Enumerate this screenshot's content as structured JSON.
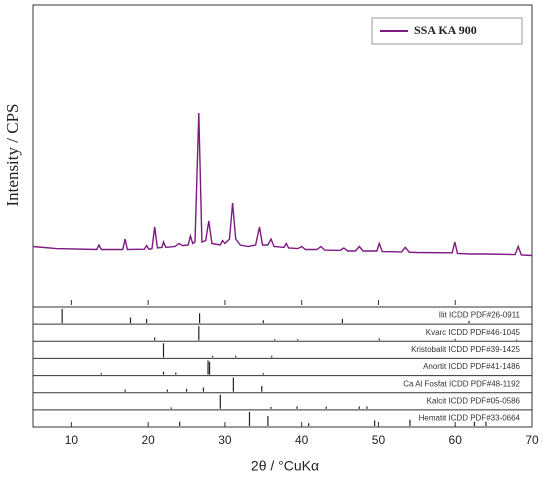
{
  "chart_data": {
    "type": "line",
    "x_label": "2θ / °CuKα",
    "y_label": "Intensity / CPS",
    "xlim": [
      5,
      70
    ],
    "xticks": [
      10,
      20,
      30,
      40,
      50,
      60,
      70
    ],
    "ylim": [
      0,
      100
    ],
    "legend": "upper right",
    "x": [
      5,
      8,
      13.3,
      13.6,
      13.9,
      16.7,
      17.0,
      17.3,
      19.5,
      19.8,
      20.1,
      20.5,
      20.85,
      21.2,
      21.8,
      22,
      22.3,
      23.5,
      24,
      24.5,
      25.2,
      25.5,
      25.8,
      26.1,
      26.6,
      27.0,
      27.5,
      27.9,
      28.3,
      29.4,
      29.7,
      30,
      30.6,
      31,
      31.4,
      32,
      33,
      34,
      34.5,
      34.9,
      35.6,
      36,
      36.4,
      37.7,
      38,
      38.3,
      39.5,
      40,
      40.5,
      42,
      42.5,
      43,
      45,
      45.5,
      46,
      47,
      47.5,
      48,
      49.8,
      50.1,
      50.5,
      53,
      53.5,
      54,
      55,
      59.6,
      59.95,
      60.3,
      62,
      64,
      67.8,
      68.2,
      68.6,
      70
    ],
    "series": [
      {
        "name": "SSA KA 900",
        "color": "#7d1a80",
        "values": [
          19.5,
          18.8,
          18.5,
          20,
          18.5,
          18.5,
          22,
          18.5,
          18.6,
          19.8,
          18.6,
          18.8,
          26,
          19,
          19.2,
          21,
          19.2,
          19.5,
          20.5,
          19.8,
          20,
          23,
          20.5,
          21,
          64,
          21,
          21.5,
          28,
          20.5,
          20,
          21.5,
          20.5,
          22,
          34,
          22,
          20,
          19.5,
          20,
          26,
          20,
          20,
          22,
          19.5,
          19.2,
          20.5,
          19,
          18.8,
          19.5,
          18.5,
          18.5,
          19.5,
          18.3,
          18.2,
          19,
          18,
          18,
          19.5,
          18,
          18,
          20.5,
          17.8,
          17.7,
          19.2,
          17.6,
          17.5,
          17.4,
          21,
          17.2,
          17,
          17,
          16.8,
          19.5,
          16.7,
          16.5
        ]
      }
    ],
    "reference_patterns": [
      {
        "name": "Ilit ICDD PDF#26-0911",
        "positions": [
          8.8,
          17.7,
          19.8,
          26.7,
          35,
          45.3,
          61.8
        ],
        "intensities": [
          100,
          40,
          30,
          70,
          20,
          30,
          15
        ]
      },
      {
        "name": "Kvarc ICDD PDF#46-1045",
        "positions": [
          20.85,
          26.6,
          36.5,
          39.5,
          50.1,
          60,
          68
        ],
        "intensities": [
          20,
          100,
          8,
          8,
          13,
          9,
          6
        ]
      },
      {
        "name": "Kristobalit ICDD PDF#39-1425",
        "positions": [
          22,
          28.4,
          31.4,
          36.1
        ],
        "intensities": [
          100,
          10,
          12,
          12
        ]
      },
      {
        "name": "Anortit ICDD PDF#41-1486",
        "positions": [
          13.9,
          22,
          23.6,
          27.8,
          28,
          35
        ],
        "intensities": [
          10,
          20,
          15,
          100,
          90,
          10
        ]
      },
      {
        "name": "Ca Al Fosfat ICDD PDF#48-1192",
        "positions": [
          17,
          22.5,
          25,
          27.2,
          31.1,
          34.8
        ],
        "intensities": [
          15,
          15,
          20,
          30,
          100,
          40
        ]
      },
      {
        "name": "Kalcit ICDD PDF#05-0586",
        "positions": [
          23,
          29.4,
          36,
          39.4,
          43.2,
          47.5,
          48.5
        ],
        "intensities": [
          10,
          100,
          13,
          18,
          15,
          17,
          17
        ]
      },
      {
        "name": "Hematit ICDD PDF#33-0664",
        "positions": [
          24.1,
          33.2,
          35.6,
          40.9,
          49.5,
          54.1,
          62.5,
          64
        ],
        "intensities": [
          30,
          100,
          70,
          20,
          40,
          45,
          30,
          30
        ]
      }
    ]
  }
}
